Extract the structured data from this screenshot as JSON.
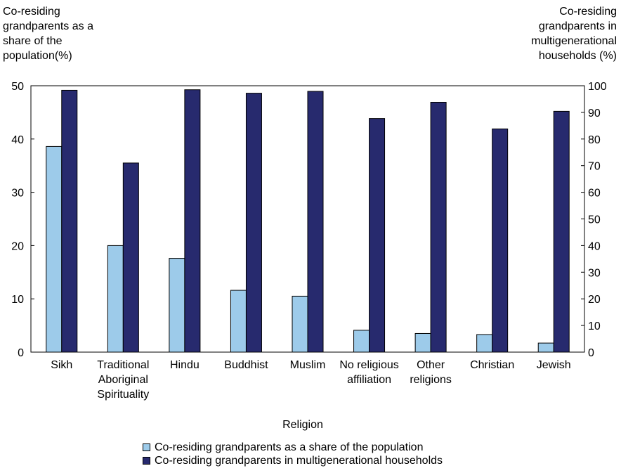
{
  "chart_data": {
    "type": "bar",
    "xlabel": "Religion",
    "categories": [
      [
        "Sikh"
      ],
      [
        "Traditional",
        "Aboriginal",
        "Spirituality"
      ],
      [
        "Hindu"
      ],
      [
        "Buddhist"
      ],
      [
        "Muslim"
      ],
      [
        "No religious",
        "affiliation"
      ],
      [
        "Other",
        "religions"
      ],
      [
        "Christian"
      ],
      [
        "Jewish"
      ]
    ],
    "y_left": {
      "label": "Co-residing grandparents as a share of the population(%)",
      "label_lines": [
        "Co-residing",
        "grandparents as a",
        "share of the",
        "population(%)"
      ],
      "ylim": [
        0,
        50
      ],
      "ticks": [
        0,
        10,
        20,
        30,
        40,
        50
      ]
    },
    "y_right": {
      "label": "Co-residing grandparents in multigenerational households (%)",
      "label_lines": [
        "Co-residing",
        "grandparents in",
        "multigenerational",
        "households (%)"
      ],
      "ylim": [
        0,
        100
      ],
      "ticks": [
        0,
        10,
        20,
        30,
        40,
        50,
        60,
        70,
        80,
        90,
        100
      ]
    },
    "series": [
      {
        "name": "Co-residing grandparents as a share of the population",
        "axis": "left",
        "color": "#9dcbea",
        "values": [
          38.6,
          20.0,
          17.6,
          11.6,
          10.5,
          4.1,
          3.5,
          3.3,
          1.7
        ]
      },
      {
        "name": "Co-residing grandparents in multigenerational households",
        "axis": "right",
        "color": "#272a6e",
        "values": [
          98.3,
          71.0,
          98.5,
          97.2,
          97.9,
          87.7,
          93.8,
          83.8,
          90.4
        ]
      }
    ],
    "grid": false,
    "legend_position": "bottom-center"
  }
}
